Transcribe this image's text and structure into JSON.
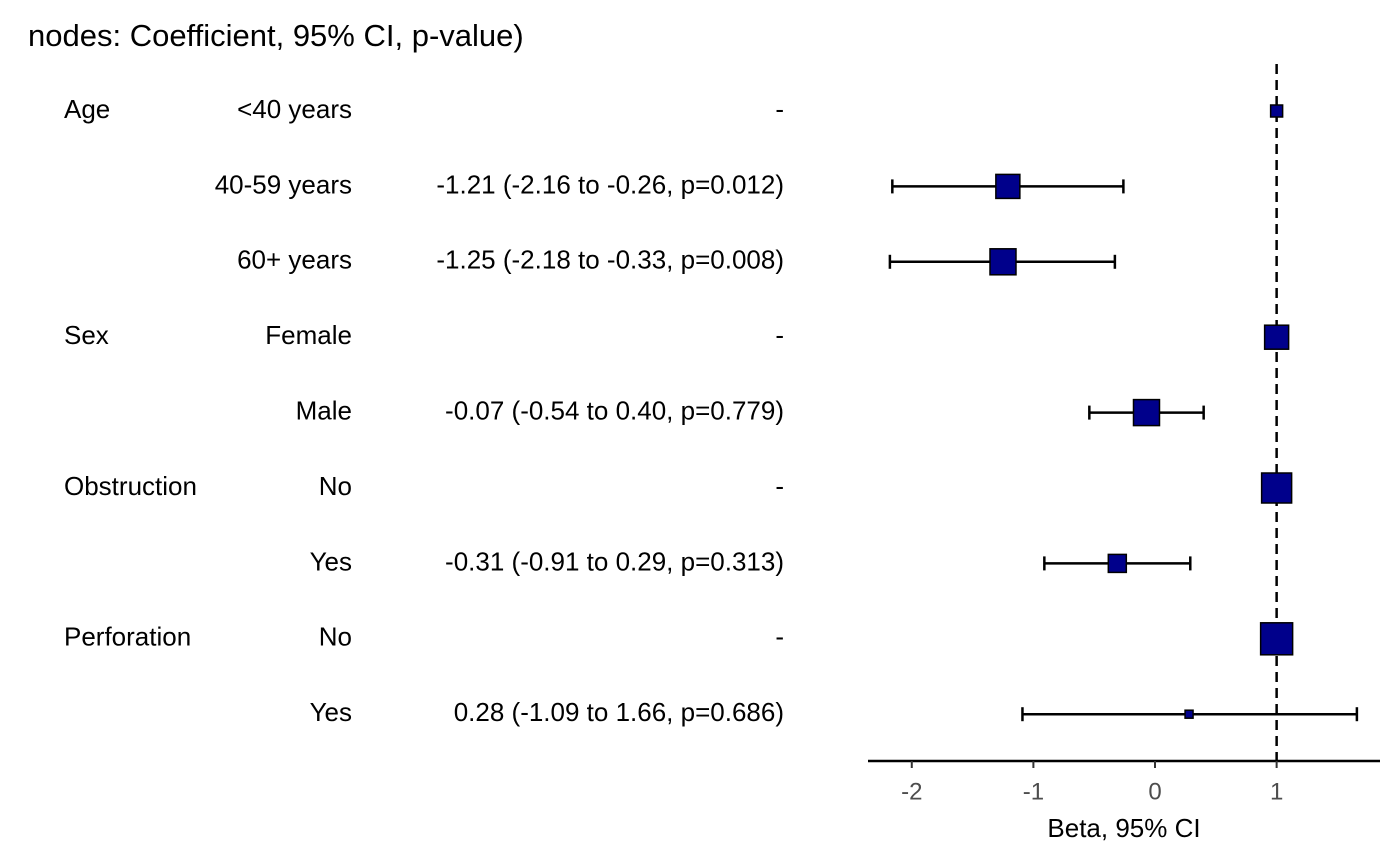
{
  "chart_data": {
    "type": "forest",
    "title": "nodes: Coefficient, 95% CI, p-value)",
    "x_label": "Beta, 95% CI",
    "variables": [
      "Age",
      null,
      null,
      "Sex",
      null,
      "Obstruction",
      null,
      "Perforation",
      null
    ],
    "levels": [
      "<40 years",
      "40-59 years",
      "60+ years",
      "Female",
      "Male",
      "No",
      "Yes",
      "No",
      "Yes"
    ],
    "labels": [
      "-",
      "-1.21 (-2.16 to -0.26, p=0.012)",
      "-1.25 (-2.18 to -0.33, p=0.008)",
      "-",
      "-0.07 (-0.54 to 0.40, p=0.779)",
      "-",
      "-0.31 (-0.91 to 0.29, p=0.313)",
      "-",
      "0.28 (-1.09 to 1.66, p=0.686)"
    ],
    "estimates": [
      1,
      -1.21,
      -1.25,
      1,
      -0.07,
      1,
      -0.31,
      1,
      0.28
    ],
    "lower": [
      null,
      -2.16,
      -2.18,
      null,
      -0.54,
      null,
      -0.91,
      null,
      -1.09
    ],
    "upper": [
      null,
      -0.26,
      -0.33,
      null,
      0.4,
      null,
      0.29,
      null,
      1.66
    ],
    "weights": [
      12,
      24,
      26,
      24,
      26,
      30,
      18,
      32,
      8
    ],
    "color": "#00008b",
    "reference_line": 1,
    "xlim": [
      -2.36,
      1.85
    ],
    "xticks": [
      -2,
      -1,
      0,
      1
    ]
  }
}
